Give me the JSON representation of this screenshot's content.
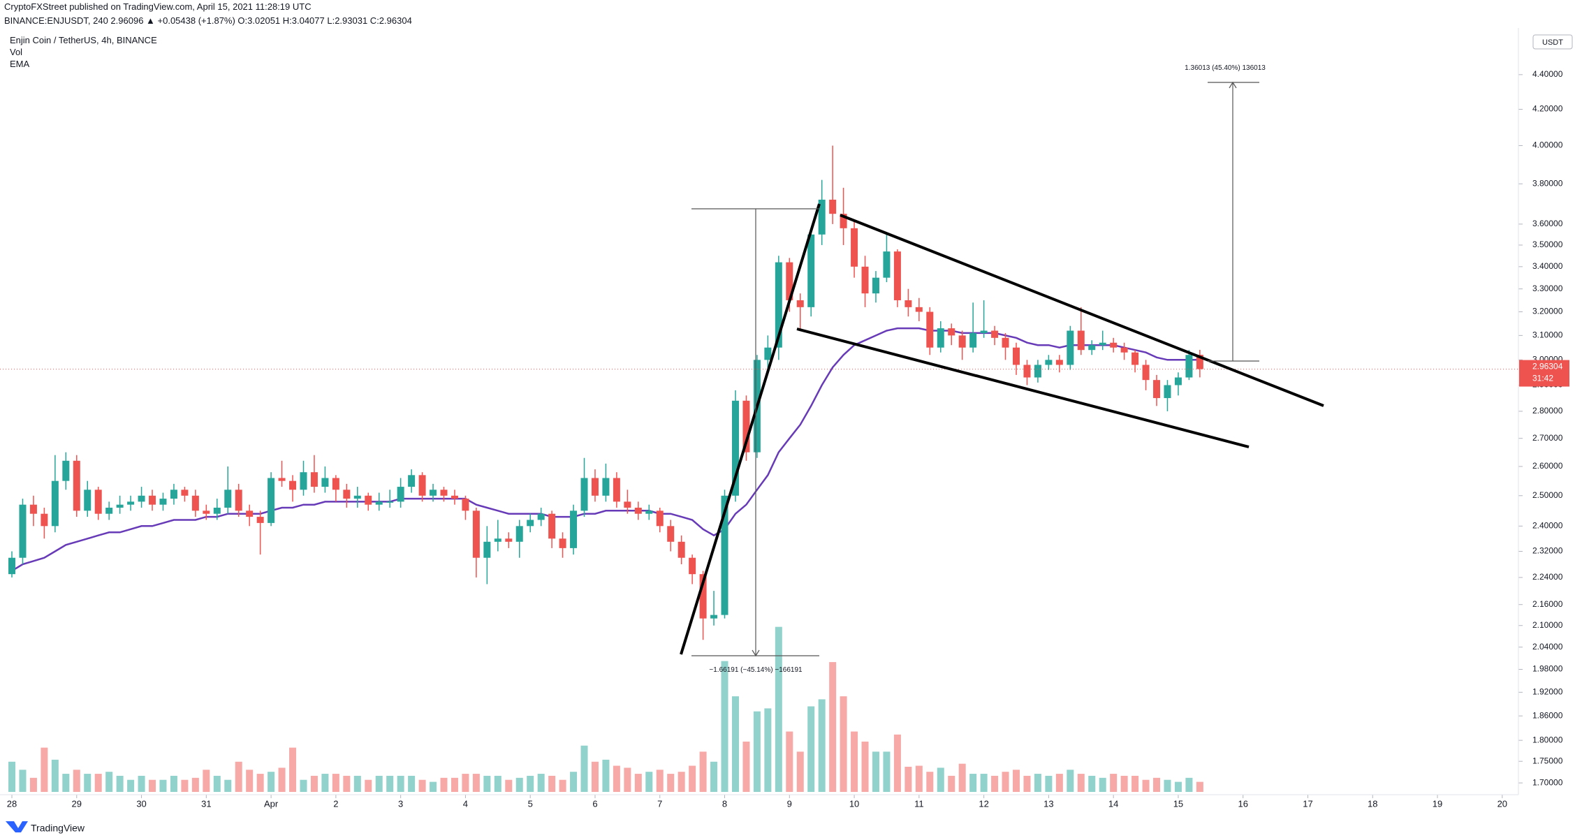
{
  "chart_data": {
    "type": "candlestick",
    "publisher": "CryptoFXStreet published on TradingView.com, April 15, 2021 11:28:19 UTC",
    "title": "Enjin Coin / TetherUS, 4h, BINANCE",
    "symbol_line": "BINANCE:ENJUSDT, 240  2.96096 ▲ +0.05438 (+1.87%)  O:3.02051  H:3.04077  L:2.93031  C:2.96304",
    "indicators": [
      "Vol",
      "EMA"
    ],
    "currency": "USDT",
    "last_price": 2.96304,
    "countdown": "31:42",
    "measure_up": "1.36013 (45.40%) 136013",
    "measure_down": "−1.66191 (−45.14%) −166191",
    "footer": "TradingView",
    "log_scale": true,
    "up_color": "#26a69a",
    "down_color": "#ef5350",
    "ema_color": "#673ab7",
    "last_color": "#ef5350",
    "ylim": [
      1.678,
      4.641
    ],
    "yticks": [
      {
        "value": 4.4,
        "label": "4.40000"
      },
      {
        "value": 4.2,
        "label": "4.20000"
      },
      {
        "value": 4.0,
        "label": "4.00000"
      },
      {
        "value": 3.8,
        "label": "3.80000"
      },
      {
        "value": 3.6,
        "label": "3.60000"
      },
      {
        "value": 3.5,
        "label": "3.50000"
      },
      {
        "value": 3.4,
        "label": "3.40000"
      },
      {
        "value": 3.3,
        "label": "3.30000"
      },
      {
        "value": 3.2,
        "label": "3.20000"
      },
      {
        "value": 3.1,
        "label": "3.10000"
      },
      {
        "value": 3.0,
        "label": "3.00000"
      },
      {
        "value": 2.9,
        "label": "2.90000"
      },
      {
        "value": 2.8,
        "label": "2.80000"
      },
      {
        "value": 2.7,
        "label": "2.70000"
      },
      {
        "value": 2.6,
        "label": "2.60000"
      },
      {
        "value": 2.5,
        "label": "2.50000"
      },
      {
        "value": 2.4,
        "label": "2.40000"
      },
      {
        "value": 2.32,
        "label": "2.32000"
      },
      {
        "value": 2.24,
        "label": "2.24000"
      },
      {
        "value": 2.16,
        "label": "2.16000"
      },
      {
        "value": 2.1,
        "label": "2.10000"
      },
      {
        "value": 2.04,
        "label": "2.04000"
      },
      {
        "value": 1.98,
        "label": "1.98000"
      },
      {
        "value": 1.92,
        "label": "1.92000"
      },
      {
        "value": 1.86,
        "label": "1.86000"
      },
      {
        "value": 1.8,
        "label": "1.80000"
      },
      {
        "value": 1.75,
        "label": "1.75000"
      },
      {
        "value": 1.7,
        "label": "1.70000"
      }
    ],
    "xlim": [
      -1.1,
      139.5
    ],
    "xticks": [
      {
        "value": 0,
        "label": "28"
      },
      {
        "value": 6,
        "label": "29"
      },
      {
        "value": 12,
        "label": "30"
      },
      {
        "value": 18,
        "label": "31"
      },
      {
        "value": 24,
        "label": "Apr"
      },
      {
        "value": 30,
        "label": "2"
      },
      {
        "value": 36,
        "label": "3"
      },
      {
        "value": 42,
        "label": "4"
      },
      {
        "value": 48,
        "label": "5"
      },
      {
        "value": 54,
        "label": "6"
      },
      {
        "value": 60,
        "label": "7"
      },
      {
        "value": 66,
        "label": "8"
      },
      {
        "value": 72,
        "label": "9"
      },
      {
        "value": 78,
        "label": "10"
      },
      {
        "value": 84,
        "label": "11"
      },
      {
        "value": 90,
        "label": "12"
      },
      {
        "value": 96,
        "label": "13"
      },
      {
        "value": 102,
        "label": "14"
      },
      {
        "value": 108,
        "label": "15"
      },
      {
        "value": 114,
        "label": "16"
      },
      {
        "value": 120,
        "label": "17"
      },
      {
        "value": 126,
        "label": "18"
      },
      {
        "value": 132,
        "label": "19"
      },
      {
        "value": 138,
        "label": "20"
      }
    ],
    "candles": [
      [
        2.25,
        2.32,
        2.24,
        2.3
      ],
      [
        2.3,
        2.49,
        2.28,
        2.47
      ],
      [
        2.47,
        2.5,
        2.4,
        2.44
      ],
      [
        2.44,
        2.46,
        2.36,
        2.4
      ],
      [
        2.4,
        2.64,
        2.38,
        2.55
      ],
      [
        2.55,
        2.65,
        2.52,
        2.62
      ],
      [
        2.62,
        2.64,
        2.43,
        2.45
      ],
      [
        2.45,
        2.55,
        2.43,
        2.52
      ],
      [
        2.52,
        2.53,
        2.42,
        2.44
      ],
      [
        2.44,
        2.48,
        2.42,
        2.46
      ],
      [
        2.46,
        2.5,
        2.44,
        2.47
      ],
      [
        2.47,
        2.5,
        2.45,
        2.48
      ],
      [
        2.48,
        2.53,
        2.46,
        2.5
      ],
      [
        2.5,
        2.52,
        2.45,
        2.47
      ],
      [
        2.47,
        2.51,
        2.45,
        2.49
      ],
      [
        2.49,
        2.54,
        2.47,
        2.52
      ],
      [
        2.52,
        2.53,
        2.48,
        2.5
      ],
      [
        2.5,
        2.52,
        2.43,
        2.45
      ],
      [
        2.45,
        2.47,
        2.42,
        2.44
      ],
      [
        2.44,
        2.49,
        2.42,
        2.46
      ],
      [
        2.46,
        2.6,
        2.44,
        2.52
      ],
      [
        2.52,
        2.54,
        2.43,
        2.45
      ],
      [
        2.45,
        2.47,
        2.4,
        2.43
      ],
      [
        2.43,
        2.45,
        2.31,
        2.41
      ],
      [
        2.41,
        2.58,
        2.4,
        2.56
      ],
      [
        2.56,
        2.62,
        2.53,
        2.55
      ],
      [
        2.55,
        2.57,
        2.48,
        2.52
      ],
      [
        2.52,
        2.62,
        2.5,
        2.58
      ],
      [
        2.58,
        2.64,
        2.51,
        2.53
      ],
      [
        2.53,
        2.6,
        2.51,
        2.56
      ],
      [
        2.56,
        2.57,
        2.48,
        2.52
      ],
      [
        2.52,
        2.54,
        2.46,
        2.49
      ],
      [
        2.49,
        2.53,
        2.46,
        2.5
      ],
      [
        2.5,
        2.51,
        2.45,
        2.47
      ],
      [
        2.47,
        2.51,
        2.45,
        2.48
      ],
      [
        2.48,
        2.52,
        2.46,
        2.48
      ],
      [
        2.48,
        2.56,
        2.46,
        2.53
      ],
      [
        2.53,
        2.59,
        2.51,
        2.57
      ],
      [
        2.57,
        2.58,
        2.48,
        2.5
      ],
      [
        2.5,
        2.54,
        2.48,
        2.52
      ],
      [
        2.52,
        2.53,
        2.48,
        2.5
      ],
      [
        2.5,
        2.52,
        2.47,
        2.49
      ],
      [
        2.49,
        2.5,
        2.42,
        2.45
      ],
      [
        2.45,
        2.46,
        2.24,
        2.3
      ],
      [
        2.3,
        2.4,
        2.22,
        2.35
      ],
      [
        2.35,
        2.42,
        2.32,
        2.36
      ],
      [
        2.36,
        2.38,
        2.33,
        2.35
      ],
      [
        2.35,
        2.42,
        2.3,
        2.4
      ],
      [
        2.4,
        2.44,
        2.38,
        2.42
      ],
      [
        2.42,
        2.46,
        2.4,
        2.44
      ],
      [
        2.44,
        2.45,
        2.33,
        2.36
      ],
      [
        2.36,
        2.38,
        2.3,
        2.33
      ],
      [
        2.33,
        2.47,
        2.31,
        2.45
      ],
      [
        2.45,
        2.63,
        2.43,
        2.56
      ],
      [
        2.56,
        2.59,
        2.48,
        2.5
      ],
      [
        2.5,
        2.61,
        2.48,
        2.56
      ],
      [
        2.56,
        2.58,
        2.46,
        2.48
      ],
      [
        2.48,
        2.52,
        2.44,
        2.46
      ],
      [
        2.46,
        2.48,
        2.42,
        2.44
      ],
      [
        2.44,
        2.47,
        2.42,
        2.45
      ],
      [
        2.45,
        2.46,
        2.38,
        2.4
      ],
      [
        2.4,
        2.42,
        2.32,
        2.35
      ],
      [
        2.35,
        2.37,
        2.28,
        2.3
      ],
      [
        2.3,
        2.31,
        2.22,
        2.25
      ],
      [
        2.25,
        2.26,
        2.06,
        2.12
      ],
      [
        2.12,
        2.2,
        2.1,
        2.13
      ],
      [
        2.13,
        2.52,
        2.12,
        2.5
      ],
      [
        2.5,
        2.88,
        2.48,
        2.84
      ],
      [
        2.84,
        2.86,
        2.62,
        2.65
      ],
      [
        2.65,
        3.02,
        2.63,
        3.0
      ],
      [
        3.0,
        3.1,
        2.95,
        3.05
      ],
      [
        3.05,
        3.45,
        3.0,
        3.42
      ],
      [
        3.42,
        3.44,
        3.2,
        3.25
      ],
      [
        3.25,
        3.28,
        3.12,
        3.22
      ],
      [
        3.22,
        3.58,
        3.18,
        3.55
      ],
      [
        3.55,
        3.82,
        3.5,
        3.72
      ],
      [
        3.72,
        4.0,
        3.6,
        3.65
      ],
      [
        3.65,
        3.78,
        3.5,
        3.58
      ],
      [
        3.58,
        3.62,
        3.35,
        3.4
      ],
      [
        3.4,
        3.45,
        3.22,
        3.28
      ],
      [
        3.28,
        3.38,
        3.24,
        3.35
      ],
      [
        3.35,
        3.55,
        3.33,
        3.47
      ],
      [
        3.47,
        3.48,
        3.22,
        3.25
      ],
      [
        3.25,
        3.3,
        3.18,
        3.22
      ],
      [
        3.22,
        3.26,
        3.16,
        3.2
      ],
      [
        3.2,
        3.22,
        3.02,
        3.05
      ],
      [
        3.05,
        3.16,
        3.03,
        3.13
      ],
      [
        3.13,
        3.15,
        3.06,
        3.1
      ],
      [
        3.1,
        3.12,
        3.0,
        3.05
      ],
      [
        3.05,
        3.24,
        3.03,
        3.11
      ],
      [
        3.11,
        3.25,
        3.09,
        3.12
      ],
      [
        3.12,
        3.14,
        3.06,
        3.09
      ],
      [
        3.09,
        3.11,
        3.0,
        3.05
      ],
      [
        3.05,
        3.07,
        2.94,
        2.98
      ],
      [
        2.98,
        3.0,
        2.9,
        2.93
      ],
      [
        2.93,
        3.0,
        2.91,
        2.98
      ],
      [
        2.98,
        3.02,
        2.96,
        3.0
      ],
      [
        3.0,
        3.02,
        2.95,
        2.98
      ],
      [
        2.98,
        3.14,
        2.96,
        3.12
      ],
      [
        3.12,
        3.22,
        3.02,
        3.04
      ],
      [
        3.04,
        3.08,
        3.02,
        3.06
      ],
      [
        3.06,
        3.12,
        3.04,
        3.07
      ],
      [
        3.07,
        3.09,
        3.03,
        3.05
      ],
      [
        3.05,
        3.07,
        3.0,
        3.03
      ],
      [
        3.03,
        3.04,
        2.95,
        2.98
      ],
      [
        2.98,
        3.0,
        2.88,
        2.92
      ],
      [
        2.92,
        2.94,
        2.82,
        2.85
      ],
      [
        2.85,
        2.92,
        2.8,
        2.9
      ],
      [
        2.9,
        2.95,
        2.86,
        2.93
      ],
      [
        2.93,
        3.04,
        2.92,
        3.02
      ],
      [
        3.02051,
        3.04077,
        2.93031,
        2.96304
      ]
    ],
    "volume": [
      30,
      22,
      14,
      44,
      32,
      18,
      22,
      18,
      18,
      20,
      16,
      12,
      16,
      12,
      12,
      16,
      12,
      14,
      22,
      16,
      12,
      30,
      22,
      18,
      20,
      24,
      44,
      12,
      16,
      18,
      18,
      16,
      16,
      12,
      16,
      16,
      16,
      16,
      12,
      10,
      14,
      14,
      18,
      18,
      16,
      16,
      12,
      14,
      16,
      18,
      16,
      12,
      20,
      46,
      30,
      32,
      26,
      24,
      18,
      20,
      22,
      18,
      20,
      26,
      40,
      30,
      130,
      95,
      50,
      80,
      83,
      164,
      60,
      40,
      85,
      92,
      129,
      95,
      60,
      50,
      40,
      40,
      57,
      25,
      26,
      20,
      24,
      16,
      28,
      18,
      18,
      16,
      20,
      22,
      16,
      18,
      16,
      18,
      22,
      18,
      16,
      14,
      18,
      16,
      16,
      12,
      14,
      12,
      10,
      14,
      10
    ],
    "vlim": [
      0,
      170
    ],
    "ema": [
      2.26,
      2.28,
      2.29,
      2.3,
      2.32,
      2.34,
      2.35,
      2.36,
      2.37,
      2.38,
      2.38,
      2.39,
      2.4,
      2.4,
      2.41,
      2.42,
      2.42,
      2.42,
      2.43,
      2.43,
      2.44,
      2.44,
      2.44,
      2.44,
      2.45,
      2.46,
      2.46,
      2.47,
      2.47,
      2.48,
      2.48,
      2.48,
      2.48,
      2.48,
      2.48,
      2.48,
      2.49,
      2.49,
      2.49,
      2.49,
      2.49,
      2.49,
      2.49,
      2.47,
      2.46,
      2.45,
      2.44,
      2.44,
      2.44,
      2.44,
      2.43,
      2.43,
      2.43,
      2.44,
      2.44,
      2.45,
      2.45,
      2.45,
      2.45,
      2.45,
      2.44,
      2.44,
      2.43,
      2.42,
      2.39,
      2.37,
      2.39,
      2.44,
      2.47,
      2.52,
      2.57,
      2.65,
      2.7,
      2.75,
      2.82,
      2.9,
      2.97,
      3.02,
      3.06,
      3.08,
      3.1,
      3.12,
      3.13,
      3.13,
      3.13,
      3.12,
      3.12,
      3.12,
      3.11,
      3.11,
      3.11,
      3.11,
      3.1,
      3.09,
      3.07,
      3.06,
      3.06,
      3.05,
      3.06,
      3.06,
      3.06,
      3.06,
      3.06,
      3.05,
      3.04,
      3.03,
      3.01,
      3.0,
      3.0,
      3.0,
      3.0
    ]
  }
}
